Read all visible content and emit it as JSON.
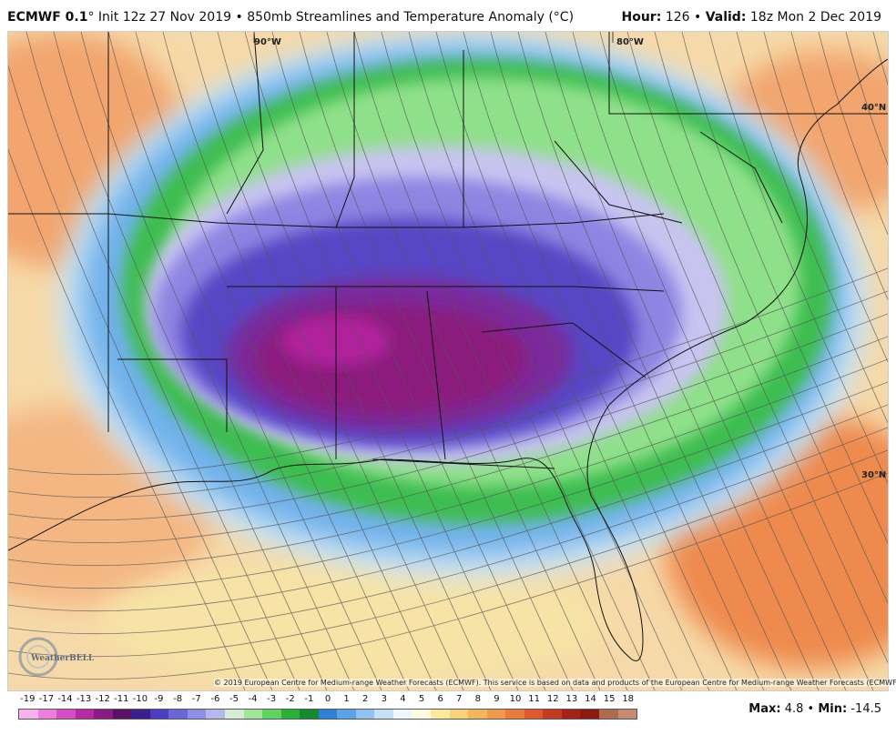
{
  "header": {
    "model": "ECMWF 0.1",
    "degree": "°",
    "init": "Init 12z 27 Nov 2019",
    "bullet": "•",
    "product": "850mb Streamlines and Temperature Anomaly (°C)",
    "hour_label": "Hour",
    "hour_value": "126",
    "valid_label": "Valid",
    "valid_value": "18z Mon 2 Dec 2019"
  },
  "map": {
    "lon_labels": [
      "90°W",
      "80°W"
    ],
    "lat_labels": [
      "40°N",
      "30°N"
    ],
    "copyright": "© 2019 European Centre for Medium-range Weather Forecasts (ECMWF). This service is based on data and products of the European Centre for Medium-range Weather Forecasts (ECMWF).",
    "logo_text": "WeatherBELL",
    "colors": {
      "ocean_warm": "#f4a270",
      "core_cold": "#7a1e6e",
      "cold_purple": "#5a3fb0",
      "green": "#2fa84a"
    }
  },
  "legend": {
    "labels": [
      "-19",
      "-17",
      "-14",
      "-13",
      "-12",
      "-11",
      "-10",
      "-9",
      "-8",
      "-7",
      "-6",
      "-5",
      "-4",
      "-3",
      "-2",
      "-1",
      "0",
      "1",
      "2",
      "3",
      "4",
      "5",
      "6",
      "7",
      "8",
      "9",
      "10",
      "11",
      "12",
      "13",
      "14",
      "15",
      "18"
    ],
    "colors": [
      "#f7b3ef",
      "#ec7fdc",
      "#d94cc8",
      "#b62aa5",
      "#8a1a84",
      "#5d1166",
      "#3a1f8f",
      "#4b3fbf",
      "#6a66d8",
      "#8e8ee6",
      "#b7b7f0",
      "#d5ecd5",
      "#9fe59a",
      "#5fd35f",
      "#28b13a",
      "#138a2b",
      "#2f7fd6",
      "#5aa3e6",
      "#8fc3f0",
      "#c6e1f6",
      "#eef6fb",
      "#fffbe0",
      "#fbe9a0",
      "#f6d27a",
      "#f3b65c",
      "#ef9a4c",
      "#e97c3c",
      "#dc5a2e",
      "#c43a22",
      "#a52218",
      "#8a1a12",
      "#b06a50",
      "#c78a72"
    ]
  },
  "stats": {
    "max_label": "Max",
    "max_value": "4.8",
    "min_label": "Min",
    "min_value": "-14.5"
  }
}
